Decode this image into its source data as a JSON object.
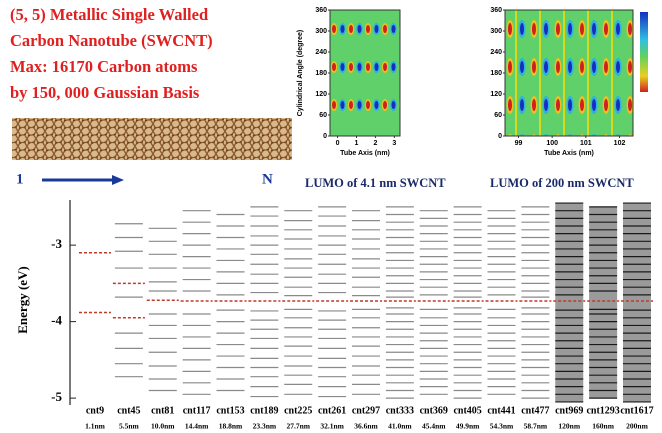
{
  "header": {
    "lines": [
      "(5, 5) Metallic  Single Walled",
      "Carbon Nanotube (SWCNT)",
      "Max: 16170 Carbon atoms",
      "by 150, 000 Gaussian Basis"
    ]
  },
  "tube": {
    "start": "1",
    "end": "N"
  },
  "maps": [
    {
      "caption": "LUMO of 4.1 nm SWCNT",
      "xlabel": "Tube Axis (nm)",
      "ylabel": "Cylindrical Angle (degree)",
      "xlim": [
        -0.4,
        3.3
      ],
      "xticks": [
        0,
        1,
        2,
        3
      ],
      "ylim": [
        0,
        360
      ],
      "yticks": [
        0,
        60,
        120,
        180,
        240,
        300,
        360
      ]
    },
    {
      "caption": "LUMO of 200 nm SWCNT",
      "xlabel": "Tube Axis (nm)",
      "xlim": [
        98.6,
        102.4
      ],
      "xticks": [
        99,
        100,
        101,
        102
      ],
      "ylim": [
        0,
        360
      ],
      "yticks": [
        0,
        60,
        120,
        180,
        240,
        300,
        360
      ]
    }
  ],
  "chart_data": {
    "type": "levels",
    "ylabel": "Energy (eV)",
    "ylim": [
      -5.09,
      -2.41
    ],
    "yticks": [
      -3,
      -4,
      -5
    ],
    "level_color": "#8a8a8a",
    "dark_color": "#1a1a1a",
    "frontier_color": "#c0392b",
    "columns": [
      {
        "name": "cnt9",
        "length": "1.1nm",
        "levels": [],
        "frontier": [
          -3.1,
          -3.88
        ]
      },
      {
        "name": "cnt45",
        "length": "5.5nm",
        "levels": [
          -2.72,
          -2.9,
          -3.08,
          -3.3,
          -3.68,
          -4.15,
          -4.35,
          -4.55,
          -4.72
        ],
        "frontier": [
          -3.5,
          -3.95
        ]
      },
      {
        "name": "cnt81",
        "length": "10.0nm",
        "levels": [
          -2.78,
          -2.95,
          -3.12,
          -3.3,
          -3.48,
          -3.6,
          -3.9,
          -4.05,
          -4.22,
          -4.4,
          -4.58,
          -4.75,
          -4.9
        ],
        "frontier": [
          -3.72
        ]
      },
      {
        "name": "cnt117",
        "length": "14.4nm",
        "levels": [
          -2.55,
          -2.7,
          -2.85,
          -3,
          -3.15,
          -3.3,
          -3.45,
          -3.6,
          -3.9,
          -4.05,
          -4.2,
          -4.35,
          -4.5,
          -4.65,
          -4.8,
          -4.95
        ],
        "frontier": [
          -3.73
        ]
      },
      {
        "name": "cnt153",
        "length": "18.8nm",
        "levels": [
          -2.6,
          -2.75,
          -2.9,
          -3.05,
          -3.2,
          -3.35,
          -3.5,
          -3.65,
          -3.85,
          -4,
          -4.15,
          -4.3,
          -4.45,
          -4.6,
          -4.75,
          -4.9
        ],
        "frontier": [
          -3.73
        ]
      },
      {
        "name": "cnt189",
        "length": "23.3nm",
        "levels": [
          -2.5,
          -2.62,
          -2.75,
          -2.88,
          -3,
          -3.12,
          -3.25,
          -3.38,
          -3.5,
          -3.62,
          -3.86,
          -3.98,
          -4.1,
          -4.22,
          -4.35,
          -4.48,
          -4.6,
          -4.72,
          -4.85,
          -4.98
        ],
        "frontier": [
          -3.73
        ]
      },
      {
        "name": "cnt225",
        "length": "27.7nm",
        "levels": [
          -2.55,
          -2.68,
          -2.8,
          -2.92,
          -3.05,
          -3.18,
          -3.3,
          -3.42,
          -3.55,
          -3.66,
          -3.84,
          -3.95,
          -4.08,
          -4.2,
          -4.32,
          -4.45,
          -4.58,
          -4.7,
          -4.82,
          -4.95
        ],
        "frontier": [
          -3.73
        ]
      },
      {
        "name": "cnt261",
        "length": "32.1nm",
        "levels": [
          -2.5,
          -2.62,
          -2.75,
          -2.88,
          -3,
          -3.12,
          -3.25,
          -3.38,
          -3.5,
          -3.62,
          -3.86,
          -3.98,
          -4.1,
          -4.22,
          -4.35,
          -4.48,
          -4.6,
          -4.72,
          -4.85,
          -4.98
        ],
        "frontier": [
          -3.73
        ]
      },
      {
        "name": "cnt297",
        "length": "36.6nm",
        "levels": [
          -2.55,
          -2.68,
          -2.8,
          -2.92,
          -3.05,
          -3.18,
          -3.3,
          -3.42,
          -3.55,
          -3.66,
          -3.84,
          -3.95,
          -4.08,
          -4.2,
          -4.32,
          -4.45,
          -4.58,
          -4.7,
          -4.82,
          -4.95
        ],
        "frontier": [
          -3.73
        ]
      },
      {
        "name": "cnt333",
        "length": "41.0nm",
        "levels": [
          -2.5,
          -2.6,
          -2.7,
          -2.8,
          -2.9,
          -3,
          -3.1,
          -3.2,
          -3.3,
          -3.4,
          -3.5,
          -3.6,
          -3.68,
          -3.82,
          -3.9,
          -4,
          -4.1,
          -4.2,
          -4.3,
          -4.4,
          -4.5,
          -4.6,
          -4.7,
          -4.8,
          -4.9,
          -5
        ],
        "frontier": [
          -3.73
        ]
      },
      {
        "name": "cnt369",
        "length": "45.4nm",
        "levels": [
          -2.55,
          -2.65,
          -2.75,
          -2.85,
          -2.95,
          -3.05,
          -3.15,
          -3.25,
          -3.35,
          -3.45,
          -3.55,
          -3.65,
          -3.84,
          -3.95,
          -4.05,
          -4.15,
          -4.25,
          -4.35,
          -4.45,
          -4.55,
          -4.65,
          -4.75,
          -4.85,
          -4.95
        ],
        "frontier": [
          -3.73
        ]
      },
      {
        "name": "cnt405",
        "length": "49.9nm",
        "levels": [
          -2.5,
          -2.6,
          -2.7,
          -2.8,
          -2.9,
          -3,
          -3.1,
          -3.2,
          -3.3,
          -3.4,
          -3.5,
          -3.6,
          -3.68,
          -3.82,
          -3.9,
          -4,
          -4.1,
          -4.2,
          -4.3,
          -4.4,
          -4.5,
          -4.6,
          -4.7,
          -4.8,
          -4.9,
          -5
        ],
        "frontier": [
          -3.73
        ]
      },
      {
        "name": "cnt441",
        "length": "54.3nm",
        "levels": [
          -2.55,
          -2.65,
          -2.75,
          -2.85,
          -2.95,
          -3.05,
          -3.15,
          -3.25,
          -3.35,
          -3.45,
          -3.55,
          -3.65,
          -3.84,
          -3.95,
          -4.05,
          -4.15,
          -4.25,
          -4.35,
          -4.45,
          -4.55,
          -4.65,
          -4.75,
          -4.85,
          -4.95
        ],
        "frontier": [
          -3.73
        ]
      },
      {
        "name": "cnt477",
        "length": "58.7nm",
        "levels": [
          -2.5,
          -2.6,
          -2.7,
          -2.8,
          -2.9,
          -3,
          -3.1,
          -3.2,
          -3.3,
          -3.4,
          -3.5,
          -3.6,
          -3.68,
          -3.82,
          -3.9,
          -4,
          -4.1,
          -4.2,
          -4.3,
          -4.4,
          -4.5,
          -4.6,
          -4.7,
          -4.8,
          -4.9,
          -5
        ],
        "frontier": [
          -3.73
        ]
      },
      {
        "name": "cnt969",
        "length": "120nm",
        "dark": true,
        "levels": [
          -2.45,
          -2.55,
          -2.65,
          -2.75,
          -2.85,
          -2.95,
          -3.05,
          -3.15,
          -3.25,
          -3.35,
          -3.45,
          -3.55,
          -3.65,
          -3.85,
          -3.95,
          -4.05,
          -4.15,
          -4.25,
          -4.35,
          -4.45,
          -4.55,
          -4.65,
          -4.75,
          -4.85,
          -4.95,
          -5.05
        ],
        "frontier": [
          -3.73
        ]
      },
      {
        "name": "cnt1293",
        "length": "160nm",
        "dark": true,
        "levels": [
          -2.5,
          -2.6,
          -2.7,
          -2.8,
          -2.9,
          -3,
          -3.1,
          -3.2,
          -3.3,
          -3.4,
          -3.5,
          -3.6,
          -3.84,
          -3.9,
          -4,
          -4.1,
          -4.2,
          -4.3,
          -4.4,
          -4.5,
          -4.6,
          -4.7,
          -4.8,
          -4.9,
          -5
        ],
        "frontier": [
          -3.73
        ]
      },
      {
        "name": "cnt1617",
        "length": "200nm",
        "dark": true,
        "levels": [
          -2.45,
          -2.55,
          -2.65,
          -2.75,
          -2.85,
          -2.95,
          -3.05,
          -3.15,
          -3.25,
          -3.35,
          -3.45,
          -3.55,
          -3.65,
          -3.85,
          -3.95,
          -4.05,
          -4.15,
          -4.25,
          -4.35,
          -4.45,
          -4.55,
          -4.65,
          -4.75,
          -4.85,
          -4.95,
          -5.05
        ],
        "frontier": [
          -3.73
        ]
      }
    ]
  }
}
